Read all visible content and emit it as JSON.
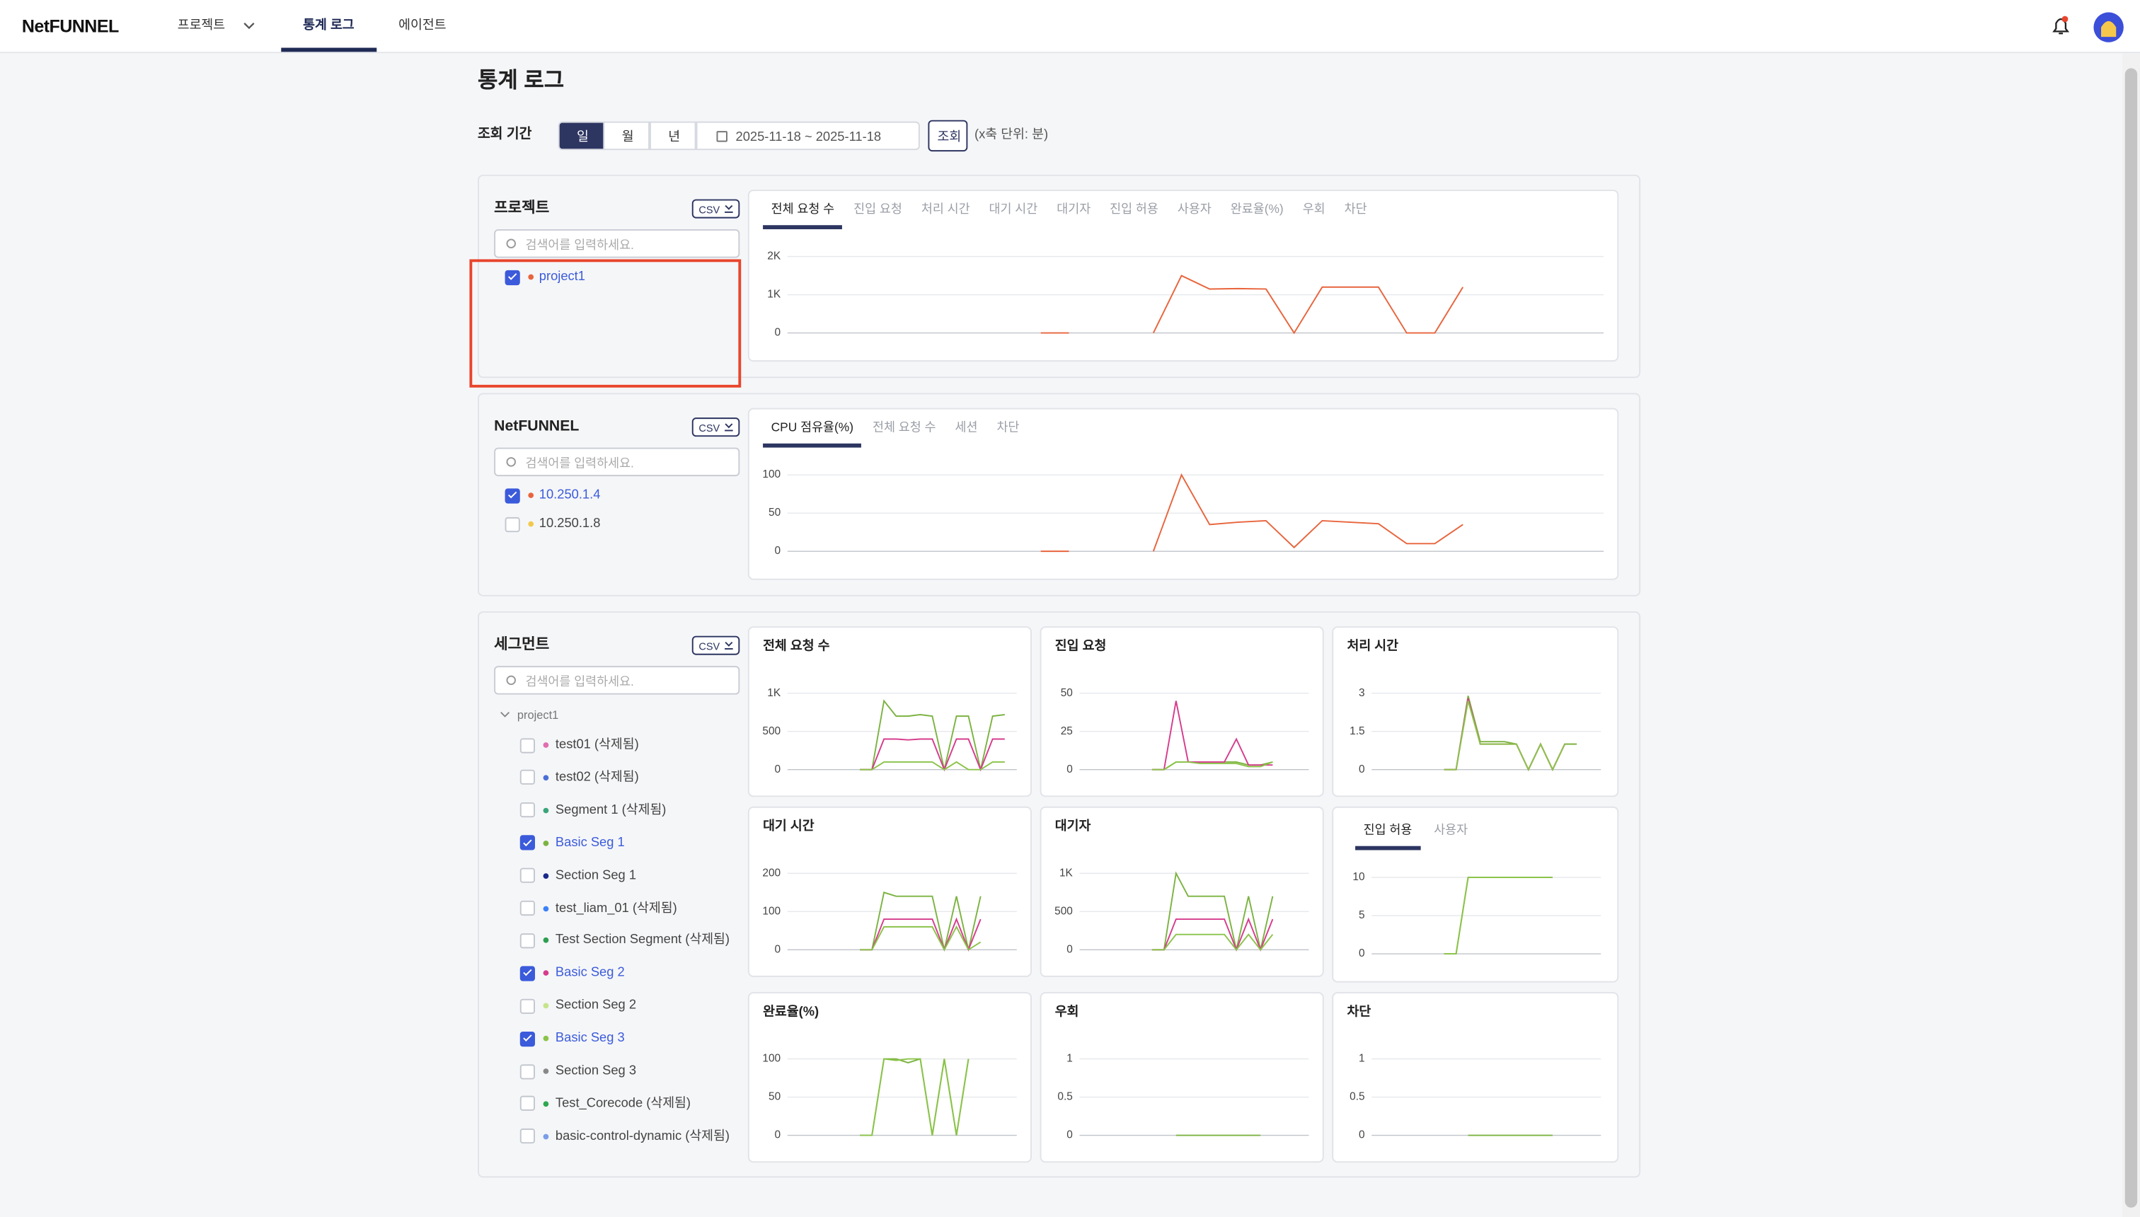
{
  "nav": {
    "logo": "NetFUNNEL",
    "items": [
      "프로젝트",
      "통계 로그",
      "에이전트"
    ],
    "active_item": 1
  },
  "header": {
    "title": "통계 로그",
    "period_label": "조회 기간",
    "period_options": [
      "일",
      "월",
      "년"
    ],
    "active_period": 0,
    "date_range": "2025-11-18 ~ 2025-11-18",
    "search_button": "조회",
    "axis_note": "(x축 단위: 분)"
  },
  "sections": [
    {
      "title": "프로젝트",
      "csv": "CSV",
      "search_placeholder": "검색어를 입력하세요.",
      "items": [
        {
          "label": "project1",
          "color": "#e8643c",
          "checked": true
        }
      ],
      "tabs": [
        "전체 요청 수",
        "진입 요청",
        "처리 시간",
        "대기 시간",
        "대기자",
        "진입 허용",
        "사용자",
        "완료율(%)",
        "우회",
        "차단"
      ],
      "active_tab": 0,
      "chart_data": {
        "type": "line",
        "ylim": [
          0,
          2000
        ],
        "yticks": [
          0,
          {
            "value": 1000,
            "label": "1K"
          },
          {
            "value": 2000,
            "label": "2K"
          }
        ],
        "grid": true,
        "series": [
          {
            "color": "#e8643c",
            "values": [
              null,
              null,
              null,
              null,
              null,
              null,
              null,
              null,
              null,
              0,
              0,
              null,
              null,
              0,
              1500,
              1150,
              1160,
              1150,
              0,
              1200,
              1200,
              1200,
              0,
              0,
              1200,
              null,
              null,
              null,
              null,
              null
            ]
          }
        ]
      }
    },
    {
      "title": "NetFUNNEL",
      "csv": "CSV",
      "search_placeholder": "검색어를 입력하세요.",
      "items": [
        {
          "label": "10.250.1.4",
          "color": "#e8643c",
          "checked": true
        },
        {
          "label": "10.250.1.8",
          "color": "#f2c94c",
          "checked": false
        }
      ],
      "tabs": [
        "CPU 점유율(%)",
        "전체 요청 수",
        "세션",
        "차단"
      ],
      "active_tab": 0,
      "chart_data": {
        "type": "line",
        "ylim": [
          0,
          100
        ],
        "yticks": [
          0,
          50,
          100
        ],
        "grid": true,
        "series": [
          {
            "color": "#e8643c",
            "values": [
              null,
              null,
              null,
              null,
              null,
              null,
              null,
              null,
              null,
              0,
              0,
              null,
              null,
              0,
              100,
              35,
              38,
              40,
              5,
              40,
              38,
              36,
              10,
              10,
              35,
              null,
              null,
              null,
              null,
              null
            ]
          }
        ]
      }
    },
    {
      "title": "세그먼트",
      "csv": "CSV",
      "search_placeholder": "검색어를 입력하세요.",
      "tree_parent": "project1",
      "items": [
        {
          "label": "test01 (삭제됨)",
          "color": "#e06fb0",
          "checked": false
        },
        {
          "label": "test02 (삭제됨)",
          "color": "#4a6fd6",
          "checked": false
        },
        {
          "label": "Segment 1 (삭제됨)",
          "color": "#3aa57a",
          "checked": false
        },
        {
          "label": "Basic Seg 1",
          "color": "#7cb342",
          "checked": true
        },
        {
          "label": "Section Seg 1",
          "color": "#1a2a8a",
          "checked": false
        },
        {
          "label": "test_liam_01 (삭제됨)",
          "color": "#3b82f6",
          "checked": false
        },
        {
          "label": "Test Section Segment (삭제됨)",
          "color": "#2e9e4f",
          "checked": false
        },
        {
          "label": "Basic Seg 2",
          "color": "#d63c8c",
          "checked": true
        },
        {
          "label": "Section Seg 2",
          "color": "#c6e48b",
          "checked": false
        },
        {
          "label": "Basic Seg 3",
          "color": "#8bc34a",
          "checked": true
        },
        {
          "label": "Section Seg 3",
          "color": "#888888",
          "checked": false
        },
        {
          "label": "Test_Corecode (삭제됨)",
          "color": "#2fa84f",
          "checked": false
        },
        {
          "label": "basic-control-dynamic (삭제됨)",
          "color": "#7a9ee8",
          "checked": false
        }
      ],
      "charts": [
        {
          "type": "line",
          "title": "전체 요청 수",
          "ylim": [
            0,
            1000
          ],
          "yticks": [
            0,
            500,
            {
              "value": 1000,
              "label": "1K"
            }
          ],
          "grid": true,
          "series": [
            {
              "color": "#7cb342",
              "values": [
                null,
                null,
                null,
                null,
                null,
                null,
                0,
                0,
                900,
                700,
                700,
                720,
                700,
                0,
                700,
                700,
                0,
                700,
                720,
                null
              ]
            },
            {
              "color": "#d63c8c",
              "values": [
                null,
                null,
                null,
                null,
                null,
                null,
                0,
                0,
                400,
                400,
                390,
                400,
                400,
                0,
                400,
                400,
                0,
                400,
                400,
                null
              ]
            },
            {
              "color": "#8bc34a",
              "values": [
                null,
                null,
                null,
                null,
                null,
                null,
                0,
                0,
                100,
                100,
                100,
                100,
                100,
                0,
                100,
                0,
                0,
                100,
                100,
                null
              ]
            }
          ]
        },
        {
          "type": "line",
          "title": "진입 요청",
          "ylim": [
            0,
            50
          ],
          "yticks": [
            0,
            25,
            50
          ],
          "grid": true,
          "series": [
            {
              "color": "#7cb342",
              "values": [
                null,
                null,
                null,
                null,
                null,
                null,
                0,
                0,
                5,
                5,
                5,
                5,
                5,
                5,
                3,
                3,
                5,
                null,
                null,
                null
              ]
            },
            {
              "color": "#d63c8c",
              "values": [
                null,
                null,
                null,
                null,
                null,
                null,
                0,
                0,
                45,
                5,
                5,
                5,
                5,
                20,
                3,
                3,
                3,
                null,
                null,
                null
              ]
            },
            {
              "color": "#8bc34a",
              "values": [
                null,
                null,
                null,
                null,
                null,
                null,
                0,
                0,
                5,
                5,
                4,
                4,
                4,
                4,
                2,
                2,
                5,
                null,
                null,
                null
              ]
            }
          ]
        },
        {
          "type": "line",
          "title": "처리 시간",
          "ylim": [
            0,
            3
          ],
          "yticks": [
            0,
            1.5,
            3
          ],
          "grid": true,
          "series": [
            {
              "color": "#7cb342",
              "values": [
                null,
                null,
                null,
                null,
                null,
                null,
                0,
                0,
                2.9,
                1.1,
                1.1,
                1.1,
                1,
                0,
                1,
                0,
                1,
                1,
                null,
                null
              ]
            },
            {
              "color": "#d63c8c",
              "values": [
                null,
                null,
                null,
                null,
                null,
                null,
                0,
                0,
                2.8,
                1,
                1,
                1,
                1,
                0,
                1,
                0,
                1,
                null,
                null,
                null
              ]
            },
            {
              "color": "#8bc34a",
              "values": [
                null,
                null,
                null,
                null,
                null,
                null,
                0,
                0,
                2.7,
                1,
                1,
                1,
                1,
                0,
                1,
                0,
                1,
                null,
                null,
                null
              ]
            }
          ]
        },
        {
          "type": "line",
          "title": "대기 시간",
          "ylim": [
            0,
            200
          ],
          "yticks": [
            0,
            100,
            200
          ],
          "grid": true,
          "series": [
            {
              "color": "#7cb342",
              "values": [
                null,
                null,
                null,
                null,
                null,
                null,
                0,
                0,
                150,
                140,
                140,
                140,
                140,
                0,
                140,
                0,
                140,
                null,
                null,
                null
              ]
            },
            {
              "color": "#d63c8c",
              "values": [
                null,
                null,
                null,
                null,
                null,
                null,
                0,
                0,
                80,
                80,
                80,
                80,
                80,
                0,
                80,
                0,
                80,
                null,
                null,
                null
              ]
            },
            {
              "color": "#8bc34a",
              "values": [
                null,
                null,
                null,
                null,
                null,
                null,
                0,
                0,
                60,
                60,
                60,
                60,
                60,
                0,
                60,
                0,
                20,
                null,
                null,
                null
              ]
            }
          ]
        },
        {
          "type": "line",
          "title": "대기자",
          "ylim": [
            0,
            1000
          ],
          "yticks": [
            0,
            500,
            {
              "value": 1000,
              "label": "1K"
            }
          ],
          "grid": true,
          "series": [
            {
              "color": "#7cb342",
              "values": [
                null,
                null,
                null,
                null,
                null,
                null,
                0,
                0,
                1000,
                700,
                700,
                700,
                700,
                0,
                700,
                0,
                700,
                null,
                null,
                null
              ]
            },
            {
              "color": "#d63c8c",
              "values": [
                null,
                null,
                null,
                null,
                null,
                null,
                0,
                0,
                400,
                400,
                400,
                400,
                400,
                0,
                400,
                0,
                400,
                null,
                null,
                null
              ]
            },
            {
              "color": "#8bc34a",
              "values": [
                null,
                null,
                null,
                null,
                null,
                null,
                0,
                0,
                200,
                200,
                200,
                200,
                200,
                0,
                200,
                0,
                200,
                null,
                null,
                null
              ]
            }
          ]
        },
        {
          "type": "line",
          "tabs": [
            "진입 허용",
            "사용자"
          ],
          "active_tab": 0,
          "ylim": [
            0,
            10
          ],
          "yticks": [
            0,
            5,
            10
          ],
          "grid": true,
          "series": [
            {
              "color": "#7cb342",
              "values": [
                null,
                null,
                null,
                null,
                null,
                null,
                0,
                0,
                10,
                10,
                10,
                10,
                10,
                10,
                10,
                10,
                null,
                null,
                null,
                null
              ]
            },
            {
              "color": "#8bc34a",
              "values": [
                null,
                null,
                null,
                null,
                null,
                null,
                0,
                0,
                10,
                10,
                10,
                10,
                10,
                10,
                10,
                10,
                null,
                null,
                null,
                null
              ]
            }
          ]
        },
        {
          "type": "line",
          "title": "완료율(%)",
          "ylim": [
            0,
            100
          ],
          "yticks": [
            0,
            50,
            100
          ],
          "grid": true,
          "series": [
            {
              "color": "#7cb342",
              "values": [
                null,
                null,
                null,
                null,
                null,
                null,
                0,
                0,
                100,
                100,
                95,
                100,
                0,
                100,
                0,
                100,
                null,
                null,
                null,
                null
              ]
            },
            {
              "color": "#8bc34a",
              "values": [
                null,
                null,
                null,
                null,
                null,
                null,
                0,
                0,
                100,
                98,
                100,
                100,
                0,
                100,
                0,
                100,
                null,
                null,
                null,
                null
              ]
            }
          ]
        },
        {
          "type": "line",
          "title": "우회",
          "ylim": [
            0,
            1
          ],
          "yticks": [
            0,
            0.5,
            1
          ],
          "grid": true,
          "series": [
            {
              "color": "#7cb342",
              "values": [
                null,
                null,
                null,
                null,
                null,
                null,
                0,
                null,
                0,
                0,
                0,
                0,
                0,
                0,
                0,
                0,
                null,
                null,
                null,
                null
              ]
            }
          ]
        },
        {
          "type": "line",
          "title": "차단",
          "ylim": [
            0,
            1
          ],
          "yticks": [
            0,
            0.5,
            1
          ],
          "grid": true,
          "series": [
            {
              "color": "#7cb342",
              "values": [
                null,
                null,
                null,
                null,
                null,
                null,
                0,
                null,
                0,
                0,
                0,
                0,
                0,
                0,
                0,
                0,
                null,
                null,
                null,
                null
              ]
            }
          ]
        }
      ]
    }
  ]
}
